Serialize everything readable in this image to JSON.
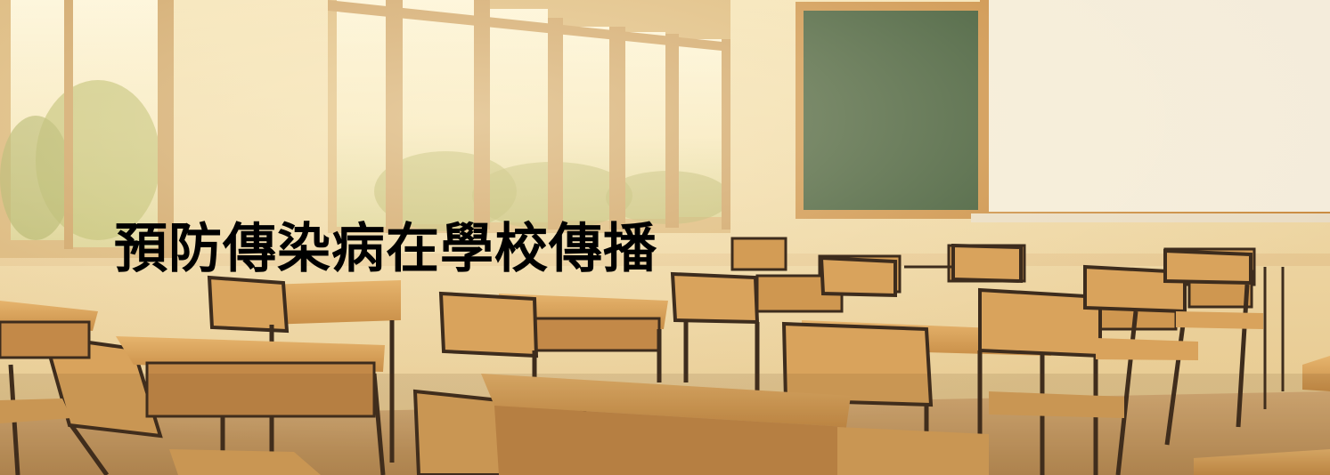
{
  "banner": {
    "title": "預防傳染病在學校傳播"
  },
  "scene": {
    "wall_color": "#f1dcae",
    "window_light_color": "#fbf1d2",
    "foliage_color": "#b5b35f",
    "chalkboard_color": "#2f4a2a",
    "board_frame_color": "#c98a3f",
    "whiteboard_color": "#f4ecdb",
    "wood_color": "#d9a35c",
    "metal_color": "#3d2c1d"
  }
}
